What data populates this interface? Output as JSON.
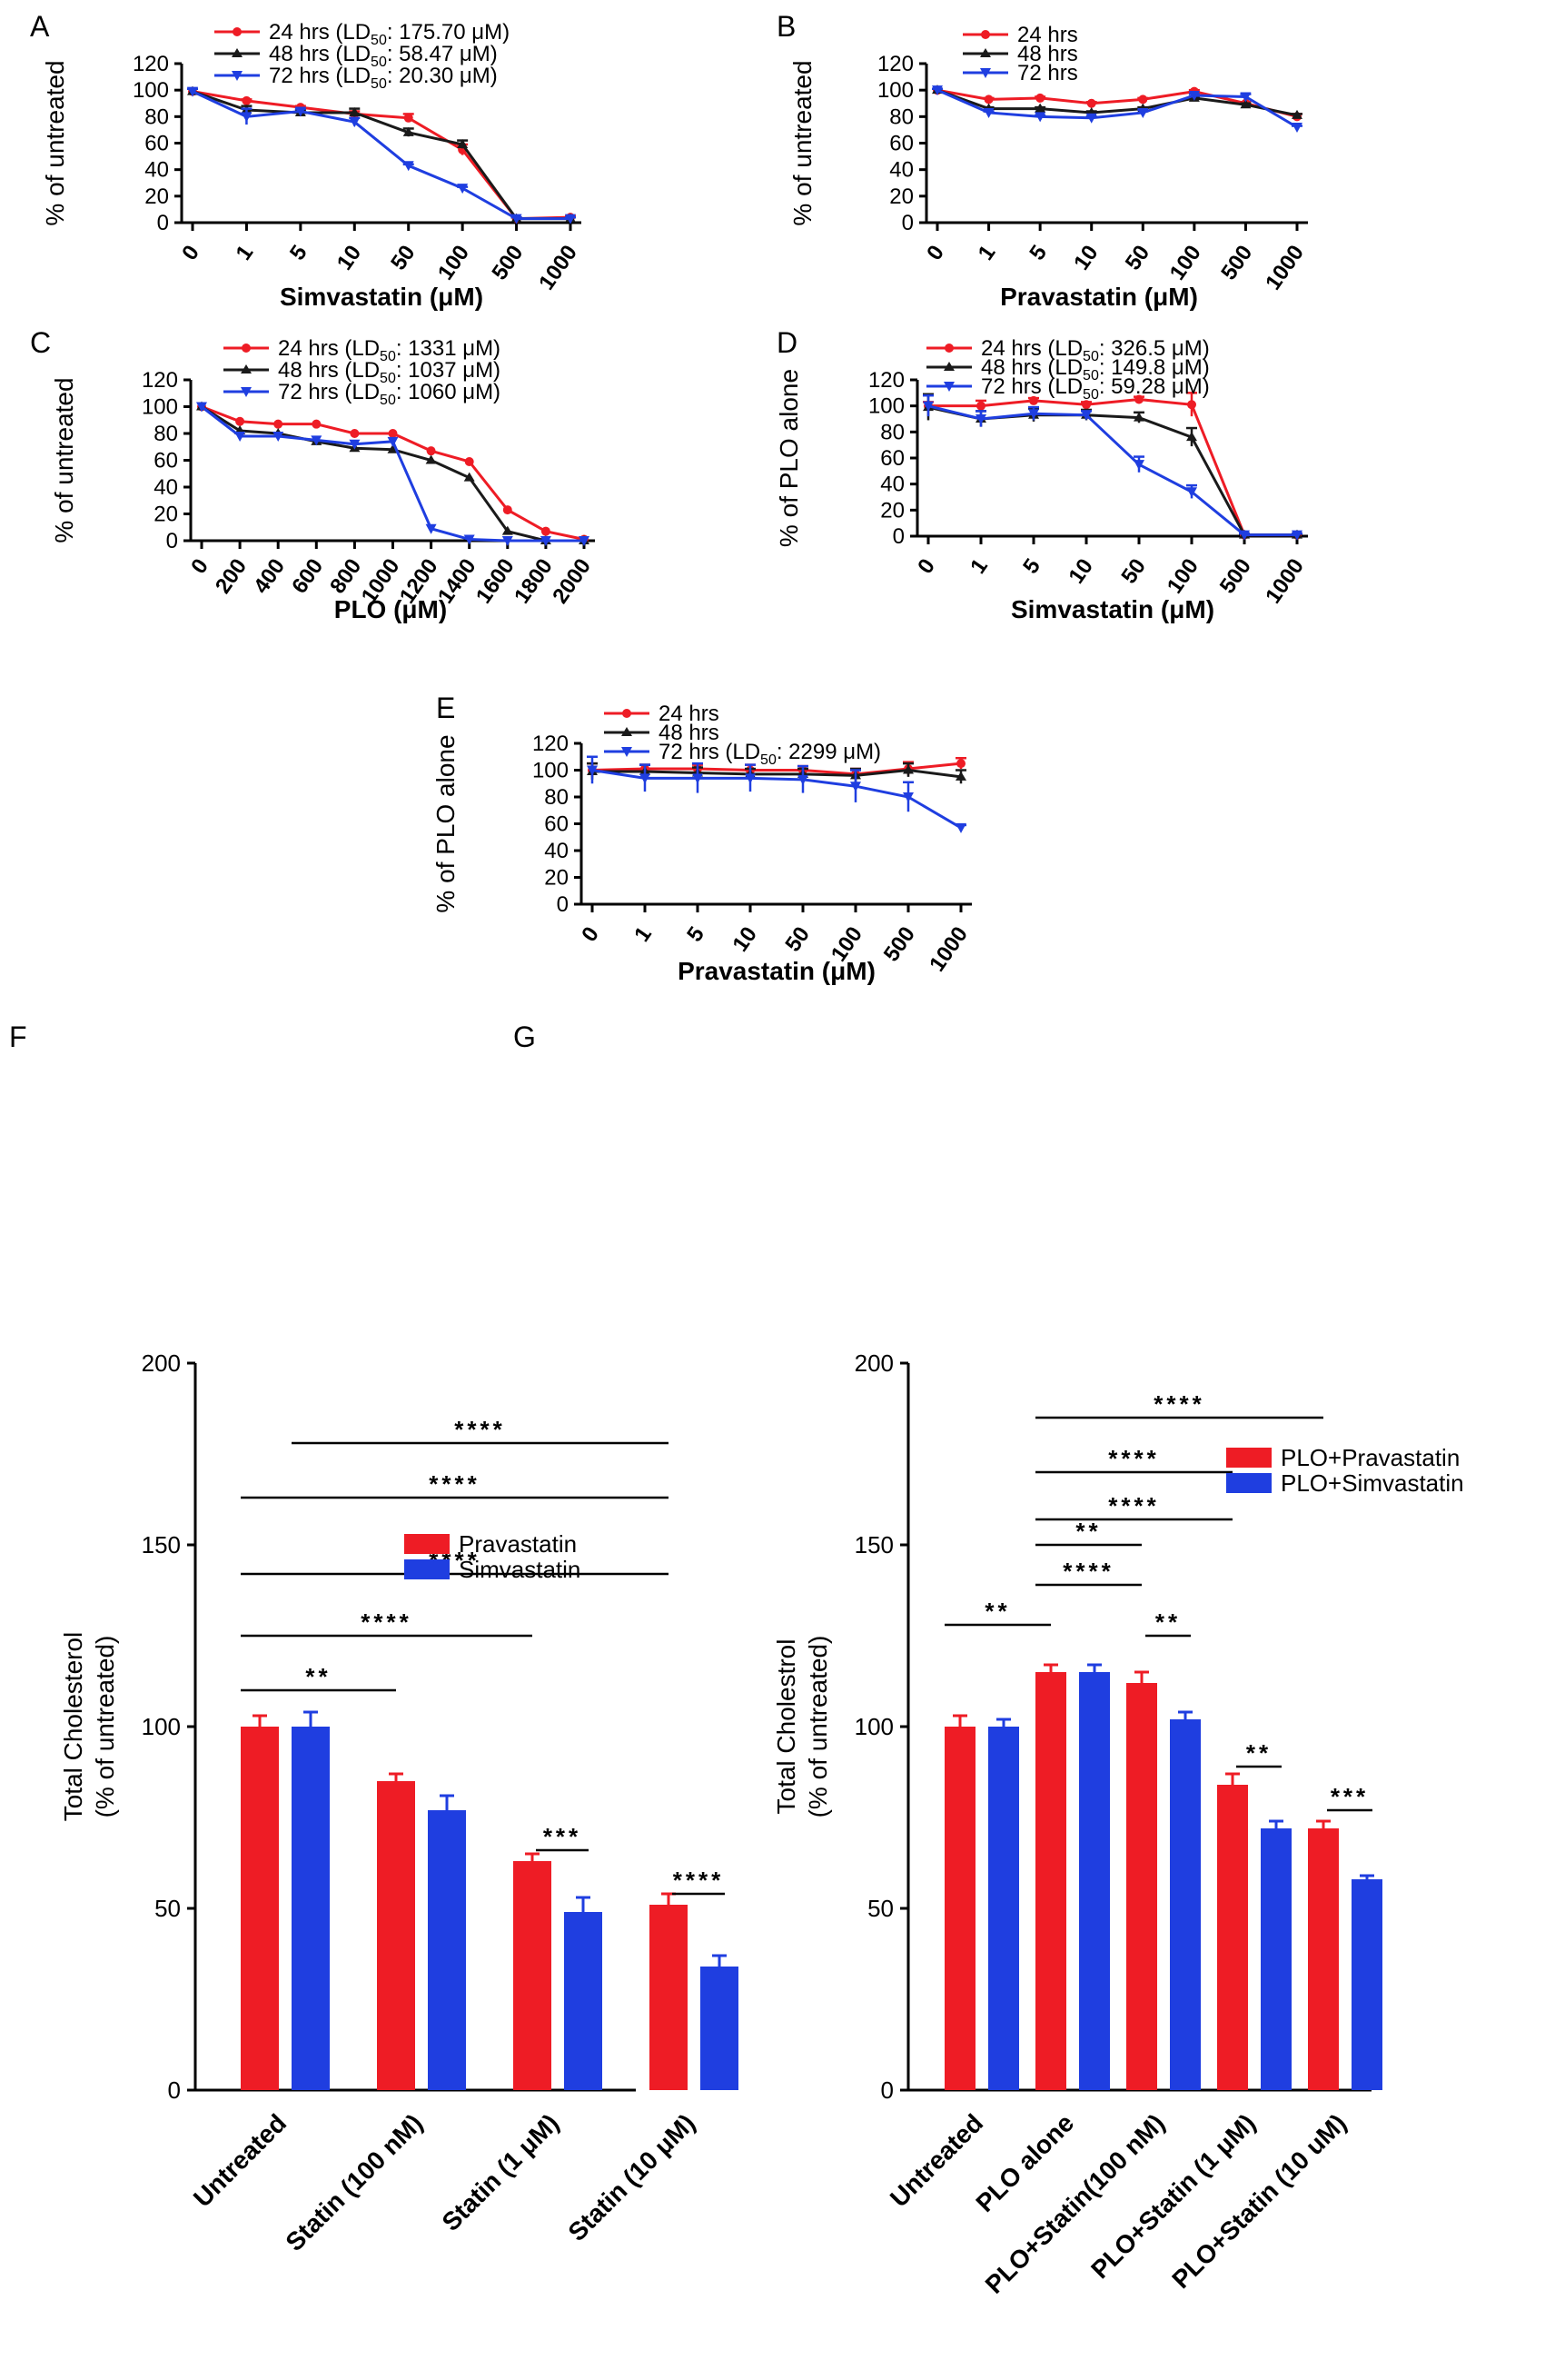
{
  "colors": {
    "red": "#ee1c25",
    "black": "#1a1a1a",
    "blue": "#1f3ee0",
    "axis": "#000000"
  },
  "chart_data": [
    {
      "panel_label": "A",
      "type": "line",
      "categories": [
        "0",
        "1",
        "5",
        "10",
        "50",
        "100",
        "500",
        "1000"
      ],
      "xlabel": "Simvastatin (μM)",
      "ylabel": "% of untreated",
      "ylim": [
        0,
        120
      ],
      "yticks": [
        "0",
        "20",
        "40",
        "60",
        "80",
        "100",
        "120"
      ],
      "legend_position": "top",
      "series": [
        {
          "name": "24 hrs (LD50: 175.70 μM)",
          "legend_prefix": "24 hrs (LD",
          "legend_sub": "50",
          "legend_suffix": ": 175.70 μM)",
          "color": "red",
          "values": [
            99,
            92,
            87,
            82,
            79,
            55,
            3,
            4
          ],
          "errors": [
            2,
            1,
            1,
            2,
            3,
            4,
            1,
            1
          ]
        },
        {
          "name": "48 hrs (LD50: 58.47 μM)",
          "legend_prefix": "48 hrs (LD",
          "legend_sub": "50",
          "legend_suffix": ": 58.47 μM)",
          "color": "black",
          "values": [
            99,
            85,
            83,
            83,
            68,
            59,
            3,
            3
          ],
          "errors": [
            2,
            3,
            2,
            3,
            3,
            3,
            1,
            1
          ]
        },
        {
          "name": "72 hrs (LD50: 20.30 μM)",
          "legend_prefix": "72 hrs (LD",
          "legend_sub": "50",
          "legend_suffix": ": 20.30 μM)",
          "color": "blue",
          "values": [
            99,
            80,
            84,
            76,
            43,
            26,
            3,
            3
          ],
          "errors": [
            2,
            6,
            2,
            3,
            1,
            1,
            1,
            1
          ]
        }
      ]
    },
    {
      "panel_label": "B",
      "type": "line",
      "categories": [
        "0",
        "1",
        "5",
        "10",
        "50",
        "100",
        "500",
        "1000"
      ],
      "xlabel": "Pravastatin (μM)",
      "ylabel": "% of untreated",
      "ylim": [
        0,
        120
      ],
      "yticks": [
        "0",
        "20",
        "40",
        "60",
        "80",
        "100",
        "120"
      ],
      "legend_position": "top",
      "series": [
        {
          "name": "24 hrs",
          "legend_prefix": "24 hrs",
          "legend_sub": "",
          "legend_suffix": "",
          "color": "red",
          "values": [
            100,
            93,
            94,
            90,
            93,
            99,
            90,
            80
          ],
          "errors": [
            1,
            1,
            1,
            1,
            1,
            1,
            1,
            2
          ]
        },
        {
          "name": "48 hrs",
          "legend_prefix": "48 hrs",
          "legend_sub": "",
          "legend_suffix": "",
          "color": "black",
          "values": [
            100,
            86,
            86,
            83,
            86,
            94,
            89,
            81
          ],
          "errors": [
            1,
            1,
            1,
            1,
            1,
            1,
            1,
            1
          ]
        },
        {
          "name": "72 hrs",
          "legend_prefix": "72 hrs",
          "legend_sub": "",
          "legend_suffix": "",
          "color": "blue",
          "values": [
            100,
            83,
            80,
            79,
            83,
            96,
            95,
            72
          ],
          "errors": [
            1,
            1,
            1,
            1,
            2,
            1,
            2,
            1
          ]
        }
      ]
    },
    {
      "panel_label": "C",
      "type": "line",
      "categories": [
        "0",
        "200",
        "400",
        "600",
        "800",
        "1000",
        "1200",
        "1400",
        "1600",
        "1800",
        "2000"
      ],
      "xlabel": "PLO (μM)",
      "ylabel": "% of untreated",
      "ylim": [
        0,
        120
      ],
      "yticks": [
        "0",
        "20",
        "40",
        "60",
        "80",
        "100",
        "120"
      ],
      "legend_position": "top",
      "series": [
        {
          "name": "24 hrs (LD50: 1331 μM)",
          "legend_prefix": "24 hrs (LD",
          "legend_sub": "50",
          "legend_suffix": ": 1331 μM)",
          "color": "red",
          "values": [
            100,
            89,
            87,
            87,
            80,
            80,
            67,
            59,
            23,
            7,
            1
          ],
          "errors": [
            0,
            0,
            0,
            0,
            0,
            0,
            0,
            0,
            0,
            0,
            0
          ]
        },
        {
          "name": "48 hrs (LD50: 1037 μM)",
          "legend_prefix": "48 hrs (LD",
          "legend_sub": "50",
          "legend_suffix": ": 1037 μM)",
          "color": "black",
          "values": [
            100,
            82,
            80,
            74,
            69,
            68,
            60,
            47,
            7,
            0,
            0
          ],
          "errors": [
            0,
            0,
            0,
            0,
            0,
            0,
            0,
            0,
            0,
            0,
            0
          ]
        },
        {
          "name": "72 hrs (LD50: 1060 μM)",
          "legend_prefix": "72 hrs (LD",
          "legend_sub": "50",
          "legend_suffix": ": 1060 μM)",
          "color": "blue",
          "values": [
            100,
            78,
            78,
            75,
            72,
            74,
            9,
            1,
            0,
            0,
            0
          ],
          "errors": [
            0,
            0,
            0,
            0,
            0,
            0,
            0,
            0,
            0,
            0,
            0
          ]
        }
      ]
    },
    {
      "panel_label": "D",
      "type": "line",
      "categories": [
        "0",
        "1",
        "5",
        "10",
        "50",
        "100",
        "500",
        "1000"
      ],
      "xlabel": "Simvastatin (μM)",
      "ylabel": "% of PLO alone",
      "ylim": [
        0,
        120
      ],
      "yticks": [
        "0",
        "20",
        "40",
        "60",
        "80",
        "100",
        "120"
      ],
      "legend_position": "top",
      "series": [
        {
          "name": "24 hrs (LD50: 326.5 μM)",
          "legend_prefix": "24 hrs (LD",
          "legend_sub": "50",
          "legend_suffix": ": 326.5 μM)",
          "color": "red",
          "values": [
            100,
            100,
            104,
            101,
            105,
            101,
            1,
            1
          ],
          "errors": [
            3,
            4,
            2,
            2,
            2,
            9,
            1,
            1
          ]
        },
        {
          "name": "48 hrs (LD50: 149.8 μM)",
          "legend_prefix": "48 hrs (LD",
          "legend_sub": "50",
          "legend_suffix": ": 149.8 μM)",
          "color": "black",
          "values": [
            99,
            90,
            93,
            93,
            91,
            76,
            1,
            1
          ],
          "errors": [
            10,
            6,
            5,
            4,
            4,
            7,
            1,
            1
          ]
        },
        {
          "name": "72 hrs (LD50: 59.28 μM)",
          "legend_prefix": "72 hrs (LD",
          "legend_sub": "50",
          "legend_suffix": ": 59.28 μM)",
          "color": "blue",
          "values": [
            100,
            90,
            94,
            93,
            55,
            34,
            1,
            1
          ],
          "errors": [
            8,
            6,
            5,
            3,
            6,
            5,
            1,
            1
          ]
        }
      ]
    },
    {
      "panel_label": "E",
      "type": "line",
      "categories": [
        "0",
        "1",
        "5",
        "10",
        "50",
        "100",
        "500",
        "1000"
      ],
      "xlabel": "Pravastatin (μM)",
      "ylabel": "% of PLO alone",
      "ylim": [
        0,
        120
      ],
      "yticks": [
        "0",
        "20",
        "40",
        "60",
        "80",
        "100",
        "120"
      ],
      "legend_position": "top",
      "series": [
        {
          "name": "24 hrs",
          "legend_prefix": "24 hrs",
          "legend_sub": "",
          "legend_suffix": "",
          "color": "red",
          "values": [
            100,
            101,
            101,
            100,
            100,
            97,
            101,
            105
          ],
          "errors": [
            5,
            3,
            3,
            4,
            3,
            4,
            5,
            4
          ]
        },
        {
          "name": "48 hrs",
          "legend_prefix": "48 hrs",
          "legend_sub": "",
          "legend_suffix": "",
          "color": "black",
          "values": [
            99,
            99,
            98,
            97,
            97,
            96,
            100,
            95
          ],
          "errors": [
            6,
            5,
            4,
            4,
            4,
            5,
            5,
            5
          ]
        },
        {
          "name": "72 hrs (LD50: 2299 μM)",
          "legend_prefix": "72 hrs (LD",
          "legend_sub": "50",
          "legend_suffix": ": 2299 μM)",
          "color": "blue",
          "values": [
            100,
            94,
            94,
            94,
            93,
            88,
            80,
            57
          ],
          "errors": [
            10,
            10,
            11,
            10,
            10,
            12,
            11,
            2
          ]
        }
      ]
    },
    {
      "panel_label": "F",
      "type": "bar",
      "categories": [
        "Untreated",
        "Statin (100 nM)",
        "Statin (1 μM)",
        "Statin (10 μM)"
      ],
      "xlabel": "",
      "ylabel_lines": [
        "Total Cholesterol",
        "(% of untreated)"
      ],
      "ylim": [
        0,
        200
      ],
      "yticks": [
        "0",
        "50",
        "100",
        "150",
        "200"
      ],
      "legend_position": "right",
      "series": [
        {
          "name": "Pravastatin",
          "color": "red",
          "values": [
            100,
            85,
            63,
            51
          ],
          "errors": [
            3,
            2,
            2,
            3
          ]
        },
        {
          "name": "Simvastatin",
          "color": "blue",
          "values": [
            100,
            77,
            49,
            34
          ],
          "errors": [
            4,
            4,
            4,
            3
          ]
        }
      ],
      "significance": [
        {
          "from_group": 0,
          "to_group": 1,
          "y": 110,
          "label": "**"
        },
        {
          "from_group": 0,
          "to_group": 2,
          "y": 125,
          "label": "****"
        },
        {
          "from_group": 0,
          "to_group": 3,
          "y": 142,
          "label": "****"
        },
        {
          "from_group": 0,
          "to_group": 3,
          "y": 163,
          "label": "****"
        },
        {
          "from_group": 0,
          "to_group": 3,
          "y": 178,
          "label": "****",
          "from_bar": 1
        },
        {
          "from_group": 2,
          "to_group": 2,
          "y": 66,
          "label": "***",
          "within": true
        },
        {
          "from_group": 3,
          "to_group": 3,
          "y": 54,
          "label": "****",
          "within": true
        }
      ]
    },
    {
      "panel_label": "G",
      "type": "bar",
      "categories": [
        "Untreated",
        "PLO alone",
        "PLO+Statin(100 nM)",
        "PLO+Statin (1 μM)",
        "PLO+Statin (10 uM)"
      ],
      "xlabel": "",
      "ylabel_lines": [
        "Total Cholestrol",
        "(% of untreated)"
      ],
      "ylim": [
        0,
        200
      ],
      "yticks": [
        "0",
        "50",
        "100",
        "150",
        "200"
      ],
      "legend_position": "right",
      "series": [
        {
          "name": "PLO+Pravastatin",
          "color": "red",
          "values": [
            100,
            115,
            112,
            84,
            72
          ],
          "errors": [
            3,
            2,
            3,
            3,
            2
          ]
        },
        {
          "name": "PLO+Simvastatin",
          "color": "blue",
          "values": [
            100,
            115,
            102,
            72,
            58
          ],
          "errors": [
            2,
            2,
            2,
            2,
            1
          ]
        }
      ],
      "significance": [
        {
          "from_group": 0,
          "to_group": 1,
          "y": 128,
          "label": "**"
        },
        {
          "from_group": 1,
          "to_group": 2,
          "y": 150,
          "label": "**",
          "inline": true
        },
        {
          "from_group": 1,
          "to_group": 2,
          "y": 139,
          "label": "****"
        },
        {
          "from_group": 1,
          "to_group": 3,
          "y": 157,
          "label": "****"
        },
        {
          "from_group": 1,
          "to_group": 3,
          "y": 170,
          "label": "****"
        },
        {
          "from_group": 1,
          "to_group": 4,
          "y": 185,
          "label": "****"
        },
        {
          "from_group": 2,
          "to_group": 2,
          "y": 125,
          "label": "**",
          "within": true
        },
        {
          "from_group": 3,
          "to_group": 3,
          "y": 89,
          "label": "**",
          "within": true
        },
        {
          "from_group": 4,
          "to_group": 4,
          "y": 77,
          "label": "***",
          "within": true
        }
      ]
    }
  ]
}
